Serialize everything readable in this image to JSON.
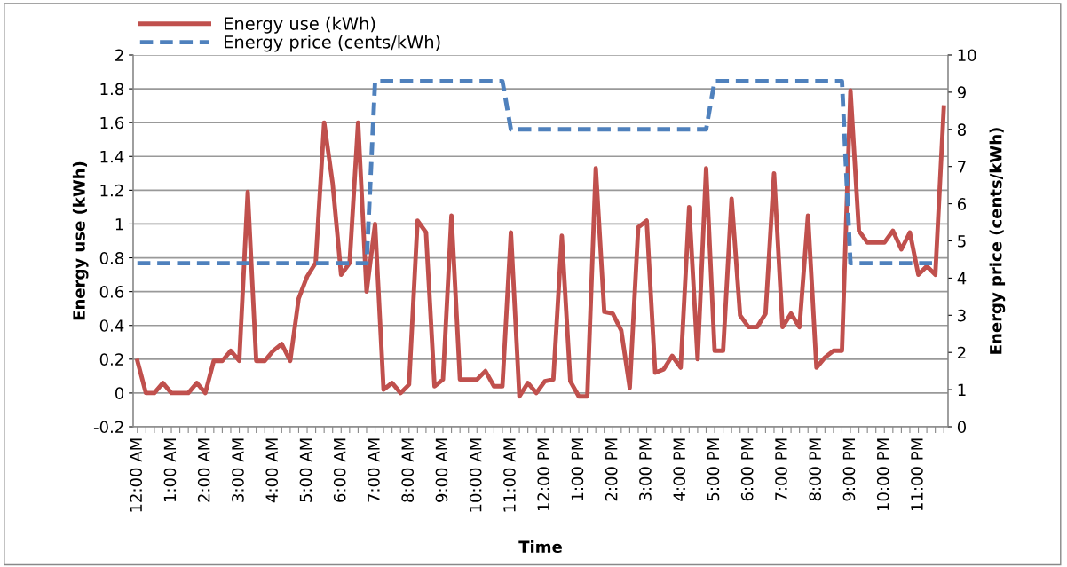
{
  "chart_data": {
    "type": "line",
    "xlabel": "Time",
    "ylabel": "Energy use (kWh)",
    "y2label": "Energy price (cents/kWh)",
    "categories": [
      "12:00 AM",
      null,
      null,
      null,
      "1:00 AM",
      null,
      null,
      null,
      "2:00 AM",
      null,
      null,
      null,
      "3:00 AM",
      null,
      null,
      null,
      "4:00 AM",
      null,
      null,
      null,
      "5:00 AM",
      null,
      null,
      null,
      "6:00 AM",
      null,
      null,
      null,
      "7:00 AM",
      null,
      null,
      null,
      "8:00 AM",
      null,
      null,
      null,
      "9:00 AM",
      null,
      null,
      null,
      "10:00 AM",
      null,
      null,
      null,
      "11:00 AM",
      null,
      null,
      null,
      "12:00 PM",
      null,
      null,
      null,
      "1:00 PM",
      null,
      null,
      null,
      "2:00 PM",
      null,
      null,
      null,
      "3:00 PM",
      null,
      null,
      null,
      "4:00 PM",
      null,
      null,
      null,
      "5:00 PM",
      null,
      null,
      null,
      "6:00 PM",
      null,
      null,
      null,
      "7:00 PM",
      null,
      null,
      null,
      "8:00 PM",
      null,
      null,
      null,
      "9:00 PM",
      null,
      null,
      null,
      "10:00 PM",
      null,
      null,
      null,
      "11:00 PM",
      null,
      null,
      null
    ],
    "series": [
      {
        "name": "Energy use (kWh)",
        "color": "#c0504d",
        "line_style": "solid",
        "values": [
          0.19,
          0,
          0,
          0.06,
          0,
          0,
          0,
          0.06,
          0,
          0.19,
          0.19,
          0.25,
          0.19,
          1.19,
          0.19,
          0.19,
          0.25,
          0.29,
          0.19,
          0.56,
          0.69,
          0.77,
          1.6,
          1.24,
          0.7,
          0.77,
          1.6,
          0.6,
          1.0,
          0.02,
          0.06,
          0,
          0.05,
          1.02,
          0.95,
          0.04,
          0.08,
          1.05,
          0.08,
          0.08,
          0.08,
          0.13,
          0.04,
          0.04,
          0.95,
          -0.02,
          0.06,
          0,
          0.07,
          0.08,
          0.93,
          0.07,
          -0.02,
          -0.02,
          1.33,
          0.48,
          0.47,
          0.37,
          0.03,
          0.98,
          1.02,
          0.12,
          0.14,
          0.22,
          0.15,
          1.1,
          0.2,
          1.33,
          0.25,
          0.25,
          1.15,
          0.46,
          0.39,
          0.39,
          0.47,
          1.3,
          0.39,
          0.47,
          0.39,
          1.05,
          0.15,
          0.21,
          0.25,
          0.25,
          1.79,
          0.96,
          0.89,
          0.89,
          0.89,
          0.96,
          0.85,
          0.95,
          0.7,
          0.75,
          0.7,
          1.69
        ]
      },
      {
        "name": "Energy price (cents/kWh)",
        "color": "#4f81bd",
        "line_style": "dashed",
        "axis": "y2",
        "values": [
          4.4,
          4.4,
          4.4,
          4.4,
          4.4,
          4.4,
          4.4,
          4.4,
          4.4,
          4.4,
          4.4,
          4.4,
          4.4,
          4.4,
          4.4,
          4.4,
          4.4,
          4.4,
          4.4,
          4.4,
          4.4,
          4.4,
          4.4,
          4.4,
          4.4,
          4.4,
          4.4,
          4.4,
          9.3,
          9.3,
          9.3,
          9.3,
          9.3,
          9.3,
          9.3,
          9.3,
          9.3,
          9.3,
          9.3,
          9.3,
          9.3,
          9.3,
          9.3,
          9.3,
          8.0,
          8.0,
          8.0,
          8.0,
          8.0,
          8.0,
          8.0,
          8.0,
          8.0,
          8.0,
          8.0,
          8.0,
          8.0,
          8.0,
          8.0,
          8.0,
          8.0,
          8.0,
          8.0,
          8.0,
          8.0,
          8.0,
          8.0,
          8.0,
          9.3,
          9.3,
          9.3,
          9.3,
          9.3,
          9.3,
          9.3,
          9.3,
          9.3,
          9.3,
          9.3,
          9.3,
          9.3,
          9.3,
          9.3,
          9.3,
          4.4,
          4.4,
          4.4,
          4.4,
          4.4,
          4.4,
          4.4,
          4.4,
          4.4,
          4.4,
          4.4,
          null
        ]
      }
    ],
    "ylim": [
      -0.2,
      2
    ],
    "yticks": [
      -0.2,
      0,
      0.2,
      0.4,
      0.6,
      0.8,
      1,
      1.2,
      1.4,
      1.6,
      1.8,
      2
    ],
    "y2lim": [
      0,
      10
    ],
    "y2ticks": [
      0,
      1,
      2,
      3,
      4,
      5,
      6,
      7,
      8,
      9,
      10
    ],
    "grid": "y",
    "legend": "top left",
    "marker": "none"
  }
}
